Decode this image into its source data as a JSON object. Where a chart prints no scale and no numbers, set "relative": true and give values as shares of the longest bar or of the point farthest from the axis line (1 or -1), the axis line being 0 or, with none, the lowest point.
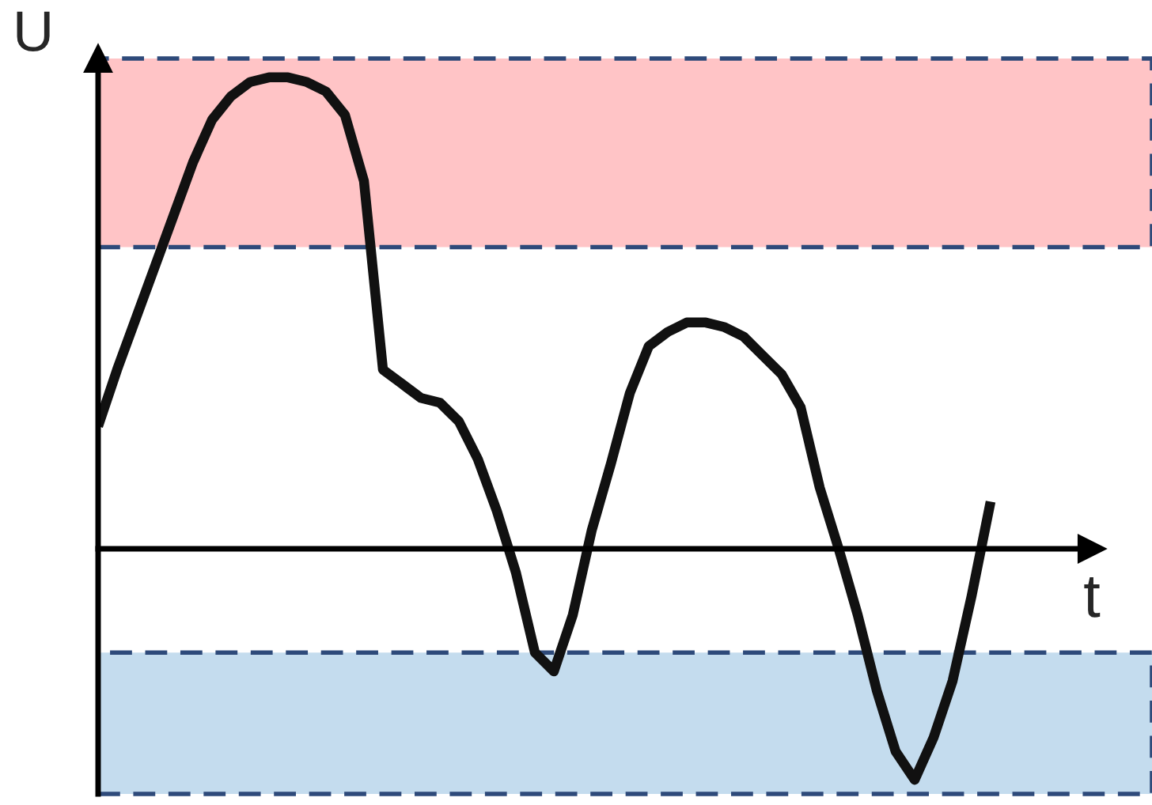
{
  "chart_data": {
    "type": "line",
    "relative": true,
    "xlabel": "t",
    "ylabel": "U",
    "line_style": "solid",
    "categories": [
      null,
      null,
      null,
      null,
      null,
      null,
      null,
      null,
      null,
      null,
      null,
      null,
      null,
      null,
      null,
      null,
      null,
      null,
      null,
      null,
      null,
      null,
      null,
      null,
      null,
      null,
      null,
      null,
      null,
      null,
      null,
      null,
      null,
      null,
      null,
      null,
      null,
      null,
      null,
      null,
      null,
      null,
      null,
      null,
      null,
      null,
      null,
      null
    ],
    "series": [
      {
        "color": "#111111",
        "values": [
          0.26,
          0.38,
          0.49,
          0.6,
          0.71,
          0.82,
          0.91,
          0.96,
          0.99,
          1.0,
          1.0,
          0.99,
          0.97,
          0.92,
          0.78,
          0.38,
          0.35,
          0.32,
          0.31,
          0.27,
          0.19,
          0.08,
          -0.05,
          -0.22,
          -0.26,
          -0.14,
          0.04,
          0.18,
          0.33,
          0.43,
          0.46,
          0.48,
          0.48,
          0.47,
          0.45,
          0.41,
          0.37,
          0.3,
          0.13,
          0.0,
          -0.14,
          -0.3,
          -0.43,
          -0.49,
          -0.4,
          -0.28,
          -0.1,
          0.1
        ]
      }
    ],
    "bands": [
      {
        "axis": "y",
        "from": 0.64,
        "to": 1.04,
        "color": "#ffc4c6"
      },
      {
        "axis": "y",
        "from": -0.52,
        "to": -0.22,
        "color": "#c4dcee"
      }
    ]
  }
}
